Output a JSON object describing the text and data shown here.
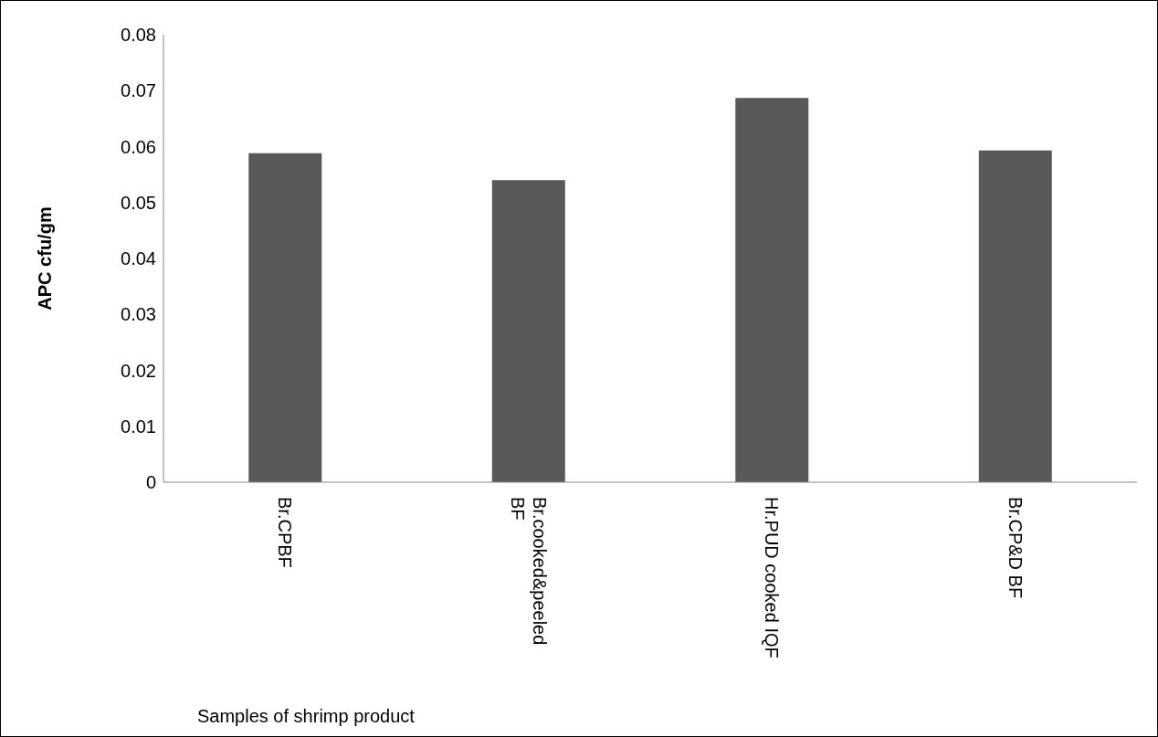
{
  "chart_data": {
    "type": "bar",
    "ylabel": "APC cfu/gm",
    "xlabel": "Samples of shrimp product",
    "categories": [
      "Br.CPBF",
      "Br.cooked&peeled BF",
      "Hr.PUD cooked IQF",
      "Br.CP&D BF"
    ],
    "values": [
      0.0588,
      0.054,
      0.0687,
      0.0593
    ],
    "color": "#595959",
    "ylim": [
      0,
      0.08
    ],
    "yticks": [
      0,
      0.01,
      0.02,
      0.03,
      0.04,
      0.05,
      0.06,
      0.07,
      0.08
    ],
    "grid": false,
    "legend": false
  }
}
